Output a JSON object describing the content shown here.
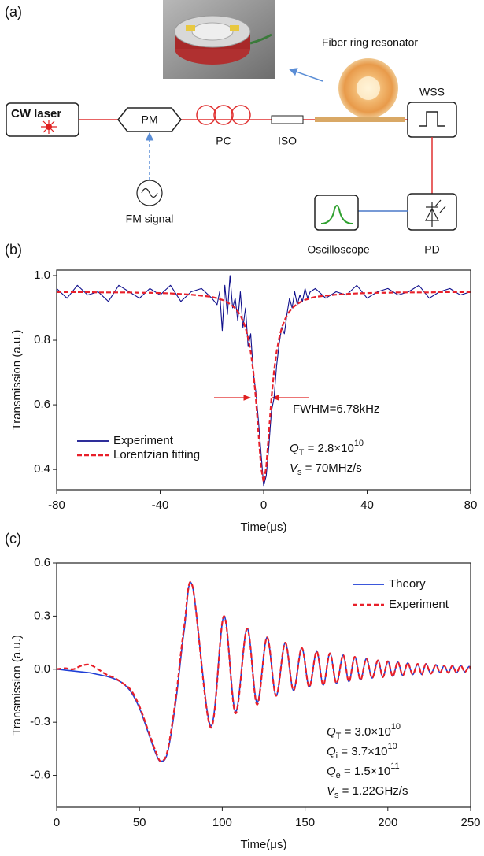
{
  "panel_labels": [
    "(a)",
    "(b)",
    "(c)"
  ],
  "diagram": {
    "laser": "CW laser",
    "modulator": "PM",
    "controller": "PC",
    "isolator": "ISO",
    "resonator": "Fiber ring resonator",
    "filter": "WSS",
    "signal": "FM signal",
    "scope": "Oscilloscope",
    "detector": "PD"
  },
  "chart_data": [
    {
      "type": "line",
      "x_label": "Time(μs)",
      "y_label": "Transmission (a.u.)",
      "xlim": [
        -80,
        80
      ],
      "xticks": [
        -80,
        -40,
        0,
        40,
        80
      ],
      "ylim": [
        0.337,
        1.017
      ],
      "yticks": [
        0.4,
        0.6,
        0.8,
        {
          "value": 1,
          "label": "1.0"
        }
      ],
      "legend": "lower left",
      "note": "FWHM=6.78kHz",
      "annotations": [
        {
          "symbol": "Q",
          "sub": "T",
          "text": " = 2.8×10",
          "sup": "10"
        },
        {
          "symbol": "V",
          "sub": "s",
          "text": " = 70MHz/s"
        }
      ],
      "x": [
        -80,
        -76,
        -72,
        -68,
        -64,
        -60,
        -56,
        -52,
        -48,
        -44,
        -40,
        -36,
        -32,
        -28,
        -24,
        -20,
        -18,
        -17,
        -16,
        -15,
        -14,
        -13,
        -12,
        -11,
        -10,
        -9,
        -8,
        -7,
        -6,
        -5,
        -4,
        -3,
        -2,
        -1,
        0,
        1,
        2,
        3,
        4,
        5,
        6,
        7,
        8,
        9,
        10,
        11,
        12,
        13,
        14,
        15,
        16,
        17,
        18,
        20,
        24,
        28,
        32,
        36,
        40,
        44,
        48,
        52,
        56,
        60,
        64,
        68,
        72,
        76,
        80
      ],
      "series": [
        {
          "name": "Experiment",
          "color": "#10108c",
          "line_style": "solid",
          "values": [
            0.96,
            0.93,
            0.97,
            0.94,
            0.95,
            0.92,
            0.97,
            0.95,
            0.93,
            0.96,
            0.94,
            0.97,
            0.92,
            0.95,
            0.96,
            0.93,
            0.91,
            0.95,
            0.83,
            0.97,
            0.88,
            1.0,
            0.9,
            0.93,
            0.86,
            0.95,
            0.84,
            0.9,
            0.78,
            0.82,
            0.7,
            0.64,
            0.55,
            0.45,
            0.35,
            0.38,
            0.47,
            0.58,
            0.62,
            0.72,
            0.79,
            0.84,
            0.82,
            0.88,
            0.93,
            0.9,
            0.95,
            0.91,
            0.94,
            0.92,
            0.96,
            0.93,
            0.95,
            0.96,
            0.93,
            0.95,
            0.94,
            0.97,
            0.93,
            0.95,
            0.96,
            0.94,
            0.95,
            0.97,
            0.93,
            0.95,
            0.96,
            0.94,
            0.95
          ]
        },
        {
          "name": "Lorentzian fitting",
          "color": "#e8202a",
          "line_style": "dashed",
          "values": [
            0.949,
            0.949,
            0.949,
            0.949,
            0.948,
            0.948,
            0.948,
            0.948,
            0.947,
            0.947,
            0.946,
            0.945,
            0.943,
            0.941,
            0.938,
            0.934,
            0.93,
            0.927,
            0.925,
            0.921,
            0.917,
            0.912,
            0.906,
            0.899,
            0.889,
            0.877,
            0.86,
            0.838,
            0.807,
            0.764,
            0.703,
            0.619,
            0.512,
            0.407,
            0.36,
            0.407,
            0.512,
            0.619,
            0.703,
            0.764,
            0.807,
            0.838,
            0.86,
            0.877,
            0.889,
            0.899,
            0.906,
            0.912,
            0.917,
            0.921,
            0.925,
            0.927,
            0.93,
            0.934,
            0.938,
            0.941,
            0.943,
            0.945,
            0.946,
            0.947,
            0.947,
            0.948,
            0.948,
            0.948,
            0.948,
            0.949,
            0.949,
            0.949,
            0.949
          ]
        }
      ]
    },
    {
      "type": "line",
      "x_label": "Time(μs)",
      "y_label": "Transmission (a.u.)",
      "xlim": [
        0,
        250
      ],
      "xticks": [
        0,
        50,
        100,
        150,
        200,
        250
      ],
      "ylim": [
        -0.78,
        0.6
      ],
      "yticks": [
        -0.6,
        -0.3,
        {
          "value": 0,
          "label": "0.0"
        },
        0.3,
        0.6
      ],
      "legend": "upper right",
      "annotations": [
        {
          "symbol": "Q",
          "sub": "T",
          "text": " = 3.0×10",
          "sup": "10"
        },
        {
          "symbol": "Q",
          "sub": "i",
          "text": " = 3.7×10",
          "sup": "10"
        },
        {
          "symbol": "Q",
          "sub": "e",
          "text": " = 1.5×10",
          "sup": "11"
        },
        {
          "symbol": "V",
          "sub": "s",
          "text": " = 1.22GHz/s"
        }
      ],
      "x": [
        0,
        5,
        10,
        15,
        20,
        25,
        30,
        35,
        40,
        45,
        50,
        55,
        60,
        63,
        67,
        72,
        77,
        82,
        93,
        101,
        108,
        115,
        121,
        127,
        132.5,
        138,
        143,
        148,
        152.5,
        157,
        161,
        165,
        169,
        173,
        176.5,
        180,
        183.5,
        187,
        190.5,
        194,
        197,
        200,
        203,
        206,
        209,
        212,
        215,
        218,
        220.5,
        223,
        226,
        229,
        231.5,
        234,
        236.5,
        239,
        241.5,
        244,
        246.5,
        249,
        250
      ],
      "series": [
        {
          "name": "Theory",
          "color": "#1f3fd6",
          "line_style": "solid",
          "values": [
            0.0,
            -0.005,
            -0.01,
            -0.015,
            -0.02,
            -0.03,
            -0.04,
            -0.055,
            -0.08,
            -0.13,
            -0.22,
            -0.35,
            -0.48,
            -0.52,
            -0.47,
            -0.18,
            0.22,
            0.47,
            -0.32,
            0.3,
            -0.24,
            0.23,
            -0.19,
            0.18,
            -0.15,
            0.15,
            -0.12,
            0.12,
            -0.1,
            0.1,
            -0.09,
            0.09,
            -0.08,
            0.08,
            -0.07,
            0.07,
            -0.06,
            0.06,
            -0.05,
            0.05,
            -0.045,
            0.045,
            -0.04,
            0.04,
            -0.035,
            0.035,
            -0.03,
            0.03,
            -0.03,
            0.03,
            -0.025,
            0.025,
            -0.02,
            0.02,
            -0.02,
            0.02,
            -0.02,
            0.02,
            -0.015,
            0.015,
            0.0
          ]
        },
        {
          "name": "Experiment",
          "color": "#e8202a",
          "line_style": "dashed",
          "values": [
            0.0,
            0.005,
            0.0,
            0.02,
            0.025,
            0.0,
            -0.03,
            -0.05,
            -0.08,
            -0.12,
            -0.21,
            -0.34,
            -0.47,
            -0.52,
            -0.46,
            -0.16,
            0.24,
            0.47,
            -0.33,
            0.3,
            -0.25,
            0.23,
            -0.2,
            0.18,
            -0.15,
            0.15,
            -0.12,
            0.12,
            -0.1,
            0.1,
            -0.09,
            0.09,
            -0.08,
            0.08,
            -0.07,
            0.07,
            -0.06,
            0.06,
            -0.05,
            0.05,
            -0.045,
            0.045,
            -0.04,
            0.04,
            -0.035,
            0.035,
            -0.03,
            0.03,
            -0.03,
            0.03,
            -0.025,
            0.025,
            -0.02,
            0.02,
            -0.02,
            0.02,
            -0.02,
            0.02,
            -0.015,
            0.015,
            0.0
          ]
        }
      ]
    }
  ]
}
